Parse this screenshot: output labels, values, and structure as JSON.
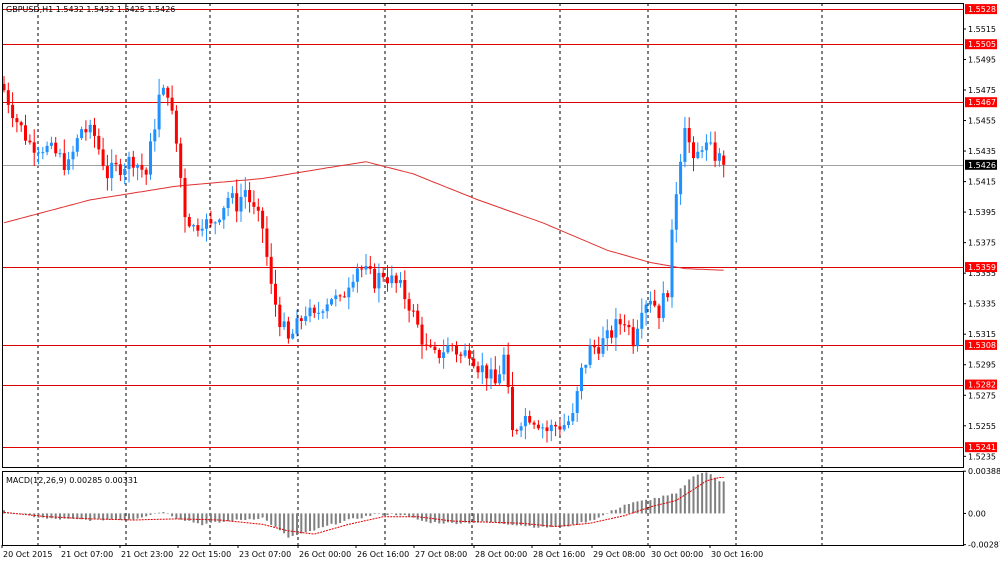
{
  "colors": {
    "background": "#ffffff",
    "grid": "#000000",
    "bull": "#1e90ff",
    "bear": "#ff0000",
    "level_line": "#e00000",
    "label_bg": "#ff0000",
    "current_bg": "#000000",
    "ma": "#e03030",
    "macd_hist": "#7f7f7f",
    "macd_signal": "#e00000"
  },
  "chart_data": {
    "type": "candlestick",
    "title": "GBPUSD,H1  1.5432 1.5432 1.5425 1.5426",
    "symbol": "GBPUSD,H1",
    "last_ohlc": [
      1.5432,
      1.5432,
      1.5425,
      1.5426
    ],
    "ylim": [
      1.5228,
      1.5532
    ],
    "y_ticks": [
      "1.5515",
      "1.5495",
      "1.5475",
      "1.5455",
      "1.5435",
      "1.5415",
      "1.5395",
      "1.5375",
      "1.5355",
      "1.5335",
      "1.5315",
      "1.5295",
      "1.5275",
      "1.5255",
      "1.5235"
    ],
    "x_tick_labels": [
      "20 Oct 2015",
      "21 Oct 07:00",
      "21 Oct 23:00",
      "22 Oct 15:00",
      "23 Oct 07:00",
      "26 Oct 00:00",
      "26 Oct 16:00",
      "27 Oct 08:00",
      "28 Oct 00:00",
      "28 Oct 16:00",
      "29 Oct 08:00",
      "30 Oct 00:00",
      "30 Oct 16:00"
    ],
    "grid": true,
    "levels": [
      {
        "value": 1.5528,
        "label": "1.5528"
      },
      {
        "value": 1.5505,
        "label": "1.5505"
      },
      {
        "value": 1.5467,
        "label": "1.5467"
      },
      {
        "value": 1.5359,
        "label": "1.5359"
      },
      {
        "value": 1.5308,
        "label": "1.5308"
      },
      {
        "value": 1.5282,
        "label": "1.5282"
      },
      {
        "value": 1.5241,
        "label": "1.5241"
      }
    ],
    "current_price": {
      "value": 1.5426,
      "label": "1.5426"
    },
    "anchors": [
      [
        0,
        1.5475
      ],
      [
        3,
        1.5455
      ],
      [
        6,
        1.544
      ],
      [
        9,
        1.5438
      ],
      [
        12,
        1.5433
      ],
      [
        15,
        1.5425
      ],
      [
        18,
        1.545
      ],
      [
        21,
        1.5445
      ],
      [
        24,
        1.542
      ],
      [
        27,
        1.5425
      ],
      [
        30,
        1.543
      ],
      [
        33,
        1.542
      ],
      [
        36,
        1.547
      ],
      [
        38,
        1.5475
      ],
      [
        40,
        1.544
      ],
      [
        42,
        1.5395
      ],
      [
        44,
        1.5385
      ],
      [
        46,
        1.539
      ],
      [
        48,
        1.5385
      ],
      [
        50,
        1.5395
      ],
      [
        52,
        1.5405
      ],
      [
        54,
        1.54
      ],
      [
        56,
        1.541
      ],
      [
        58,
        1.5395
      ],
      [
        60,
        1.5385
      ],
      [
        62,
        1.5345
      ],
      [
        64,
        1.5325
      ],
      [
        66,
        1.531
      ],
      [
        68,
        1.532
      ],
      [
        70,
        1.533
      ],
      [
        72,
        1.5325
      ],
      [
        74,
        1.5335
      ],
      [
        76,
        1.534
      ],
      [
        78,
        1.5335
      ],
      [
        80,
        1.535
      ],
      [
        82,
        1.536
      ],
      [
        84,
        1.5355
      ],
      [
        86,
        1.535
      ],
      [
        88,
        1.5355
      ],
      [
        90,
        1.535
      ],
      [
        92,
        1.5345
      ],
      [
        94,
        1.5335
      ],
      [
        96,
        1.532
      ],
      [
        98,
        1.5305
      ],
      [
        100,
        1.53
      ],
      [
        102,
        1.5305
      ],
      [
        104,
        1.5308
      ],
      [
        106,
        1.53
      ],
      [
        108,
        1.5305
      ],
      [
        110,
        1.5295
      ],
      [
        112,
        1.529
      ],
      [
        114,
        1.5282
      ],
      [
        116,
        1.53
      ],
      [
        118,
        1.525
      ],
      [
        120,
        1.526
      ],
      [
        122,
        1.5262
      ],
      [
        124,
        1.5258
      ],
      [
        126,
        1.5252
      ],
      [
        128,
        1.5255
      ],
      [
        130,
        1.5256
      ],
      [
        132,
        1.526
      ],
      [
        134,
        1.529
      ],
      [
        136,
        1.5305
      ],
      [
        138,
        1.5308
      ],
      [
        140,
        1.5312
      ],
      [
        142,
        1.532
      ],
      [
        144,
        1.5325
      ],
      [
        146,
        1.5312
      ],
      [
        148,
        1.5335
      ],
      [
        150,
        1.534
      ],
      [
        152,
        1.533
      ],
      [
        154,
        1.5345
      ],
      [
        156,
        1.541
      ],
      [
        158,
        1.5455
      ],
      [
        160,
        1.5425
      ],
      [
        162,
        1.544
      ],
      [
        164,
        1.5435
      ],
      [
        166,
        1.543
      ],
      [
        167,
        1.5426
      ]
    ],
    "ma_period_label": "",
    "ma_points": [
      [
        0,
        1.5388
      ],
      [
        20,
        1.5403
      ],
      [
        40,
        1.5412
      ],
      [
        60,
        1.5417
      ],
      [
        75,
        1.5424
      ],
      [
        84,
        1.5428
      ],
      [
        95,
        1.542
      ],
      [
        110,
        1.5403
      ],
      [
        125,
        1.5388
      ],
      [
        140,
        1.537
      ],
      [
        150,
        1.5362
      ],
      [
        158,
        1.5358
      ],
      [
        166,
        1.5357
      ]
    ],
    "macd": {
      "label": "MACD(12,26,9) 0.00285 0.00331",
      "params": "12,26,9",
      "values": [
        0.00285,
        0.00331
      ],
      "y_ticks": [
        "0.00388",
        "0.00",
        "-0.00287"
      ],
      "ylim": [
        -0.0029,
        0.0039
      ],
      "hist_anchors": [
        [
          0,
          0.0002
        ],
        [
          10,
          -0.0005
        ],
        [
          20,
          -0.0006
        ],
        [
          30,
          -0.0005
        ],
        [
          37,
          0.0002
        ],
        [
          40,
          -0.0004
        ],
        [
          46,
          -0.001
        ],
        [
          55,
          -0.0006
        ],
        [
          60,
          -0.0004
        ],
        [
          66,
          -0.0022
        ],
        [
          70,
          -0.0018
        ],
        [
          78,
          -0.0008
        ],
        [
          86,
          -0.0001
        ],
        [
          92,
          -0.0001
        ],
        [
          98,
          -0.0008
        ],
        [
          104,
          -0.0009
        ],
        [
          112,
          -0.0008
        ],
        [
          118,
          -0.001
        ],
        [
          125,
          -0.0013
        ],
        [
          132,
          -0.0011
        ],
        [
          138,
          -0.0004
        ],
        [
          144,
          0.0008
        ],
        [
          150,
          0.0013
        ],
        [
          156,
          0.0018
        ],
        [
          160,
          0.0035
        ],
        [
          163,
          0.0038
        ],
        [
          166,
          0.003
        ]
      ],
      "signal_anchors": [
        [
          0,
          0.0001
        ],
        [
          10,
          -0.0003
        ],
        [
          20,
          -0.0005
        ],
        [
          30,
          -0.0006
        ],
        [
          40,
          -0.0005
        ],
        [
          50,
          -0.0006
        ],
        [
          60,
          -0.001
        ],
        [
          66,
          -0.0016
        ],
        [
          72,
          -0.0019
        ],
        [
          80,
          -0.001
        ],
        [
          88,
          -0.0003
        ],
        [
          96,
          -0.0003
        ],
        [
          104,
          -0.0007
        ],
        [
          112,
          -0.0008
        ],
        [
          120,
          -0.0009
        ],
        [
          128,
          -0.0012
        ],
        [
          136,
          -0.0009
        ],
        [
          144,
          -0.0002
        ],
        [
          150,
          0.0006
        ],
        [
          156,
          0.0012
        ],
        [
          160,
          0.0022
        ],
        [
          163,
          0.003
        ],
        [
          166,
          0.0033
        ]
      ]
    }
  }
}
